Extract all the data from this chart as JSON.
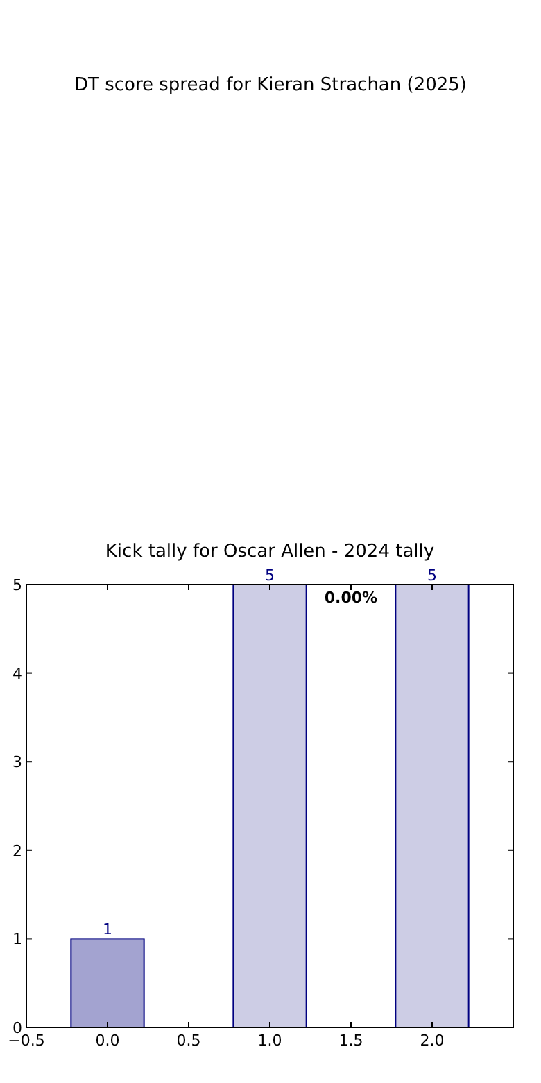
{
  "chart_data": {
    "type": "bar",
    "title": "Kick tally for Oscar Allen - 2024 tally",
    "x": [
      0,
      1,
      2
    ],
    "values": [
      1,
      5,
      5
    ],
    "colors": [
      "#a3a3d0",
      "#cdcde5",
      "#cdcde5"
    ],
    "xlim": [
      -0.5,
      2.5
    ],
    "xticks": [
      -0.5,
      {
        "value": 0,
        "label": "0.0"
      },
      0.5,
      {
        "value": 1,
        "label": "1.0"
      },
      1.5,
      {
        "value": 2,
        "label": "2.0"
      }
    ],
    "ylim": [
      0,
      5
    ],
    "yticks": [
      0,
      1,
      2,
      3,
      4,
      5
    ],
    "grid": false,
    "data_labels": true,
    "annotations": [
      "DT score spread for Kieran Strachan (2025)",
      "0.00%"
    ]
  }
}
